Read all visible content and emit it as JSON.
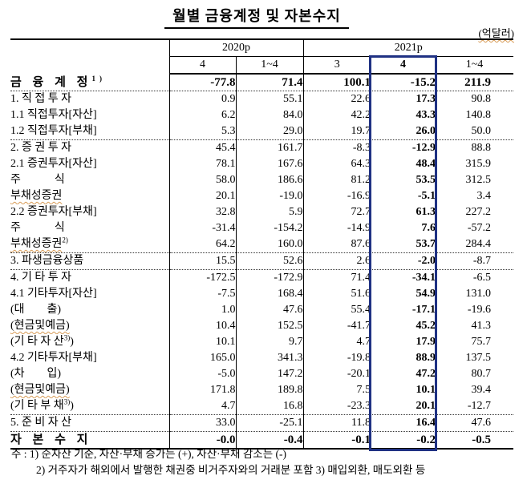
{
  "title": "월별 금융계정 및 자본수지",
  "unit": "(억달러)",
  "accent_color": "#1f3183",
  "table": {
    "col_groups": [
      {
        "label": "2020p",
        "span": 2
      },
      {
        "label": "2021p",
        "span": 3
      }
    ],
    "sub_headers": [
      "4",
      "1~4",
      "3",
      "4",
      "1~4"
    ],
    "highlight_col_index": 3,
    "rows": [
      {
        "label": "금 융 계 정",
        "sup": "1)",
        "indent": 0,
        "bold": true,
        "section_end": true,
        "values": [
          "-77.8",
          "71.4",
          "100.1",
          "-15.2",
          "211.9"
        ]
      },
      {
        "label": "1. 직 접 투 자",
        "indent": 1,
        "values": [
          "0.9",
          "55.1",
          "22.6",
          "17.3",
          "90.8"
        ]
      },
      {
        "label": "1.1 직접투자[자산]",
        "indent": 2,
        "values": [
          "6.2",
          "84.0",
          "42.2",
          "43.3",
          "140.8"
        ]
      },
      {
        "label": "1.2 직접투자[부채]",
        "indent": 2,
        "section_end": true,
        "values": [
          "5.3",
          "29.0",
          "19.7",
          "26.0",
          "50.0"
        ]
      },
      {
        "label": "2. 증 권 투 자",
        "indent": 1,
        "values": [
          "45.4",
          "161.7",
          "-8.3",
          "-12.9",
          "88.8"
        ]
      },
      {
        "label": "2.1 증권투자[자산]",
        "indent": 2,
        "values": [
          "78.1",
          "167.6",
          "64.3",
          "48.4",
          "315.9"
        ]
      },
      {
        "label": "주            식",
        "indent": 4,
        "values": [
          "58.0",
          "186.6",
          "81.2",
          "53.5",
          "312.5"
        ]
      },
      {
        "label": "부채성증권",
        "indent": 5,
        "squiggle": true,
        "values": [
          "20.1",
          "-19.0",
          "-16.9",
          "-5.1",
          "3.4"
        ]
      },
      {
        "label": "2.2 증권투자[부채]",
        "indent": 2,
        "values": [
          "32.8",
          "5.9",
          "72.7",
          "61.3",
          "227.2"
        ]
      },
      {
        "label": "주            식",
        "indent": 4,
        "values": [
          "-31.4",
          "-154.2",
          "-14.9",
          "7.6",
          "-57.2"
        ]
      },
      {
        "label": "부채성증권",
        "sup": "2)",
        "indent": 5,
        "squiggle": true,
        "section_end": true,
        "values": [
          "64.2",
          "160.0",
          "87.6",
          "53.7",
          "284.4"
        ]
      },
      {
        "label": "3. 파생금융상품",
        "indent": 1,
        "section_end": true,
        "values": [
          "15.5",
          "52.6",
          "2.6",
          "-2.0",
          "-8.7"
        ]
      },
      {
        "label": "4. 기 타 투 자",
        "indent": 1,
        "values": [
          "-172.5",
          "-172.9",
          "71.4",
          "-34.1",
          "-6.5"
        ]
      },
      {
        "label": "4.1 기타투자[자산]",
        "indent": 2,
        "values": [
          "-7.5",
          "168.4",
          "51.6",
          "54.9",
          "131.0"
        ]
      },
      {
        "label": "(대        출)",
        "indent": 3,
        "values": [
          "1.0",
          "47.6",
          "55.4",
          "-17.1",
          "-19.6"
        ]
      },
      {
        "label": "(현금및예금)",
        "indent": 3,
        "squiggle": true,
        "values": [
          "10.4",
          "152.5",
          "-41.7",
          "45.2",
          "41.3"
        ]
      },
      {
        "label": "(기 타 자 산",
        "sup": "3)",
        "tail": ")",
        "indent": 3,
        "values": [
          "10.1",
          "9.7",
          "4.7",
          "17.9",
          "75.7"
        ]
      },
      {
        "label": "4.2 기타투자[부채]",
        "indent": 2,
        "values": [
          "165.0",
          "341.3",
          "-19.8",
          "88.9",
          "137.5"
        ]
      },
      {
        "label": "(차        입)",
        "indent": 3,
        "values": [
          "-5.0",
          "147.2",
          "-20.1",
          "47.2",
          "80.7"
        ]
      },
      {
        "label": "(현금및예금)",
        "indent": 3,
        "squiggle": true,
        "values": [
          "171.8",
          "189.8",
          "7.5",
          "10.1",
          "39.4"
        ]
      },
      {
        "label": "(기 타 부 채",
        "sup": "3)",
        "tail": ")",
        "indent": 3,
        "section_end": true,
        "values": [
          "4.7",
          "16.8",
          "-23.3",
          "20.1",
          "-12.7"
        ]
      },
      {
        "label": "5. 준 비 자 산",
        "indent": 1,
        "section_end": true,
        "values": [
          "33.0",
          "-25.1",
          "11.8",
          "16.4",
          "47.6"
        ]
      },
      {
        "label": "자 본 수 지",
        "indent": 0,
        "bold": true,
        "values": [
          "-0.0",
          "-0.4",
          "-0.1",
          "-0.2",
          "-0.5"
        ]
      }
    ]
  },
  "notes": [
    "주 : 1) 순자산 기준, 자산·부채 증가는 (+), 자산·부채 감소는 (-)",
    "2) 거주자가 해외에서 발행한 채권중 비거주자와의 거래분 포함  3) 매입외환, 매도외환 등"
  ]
}
